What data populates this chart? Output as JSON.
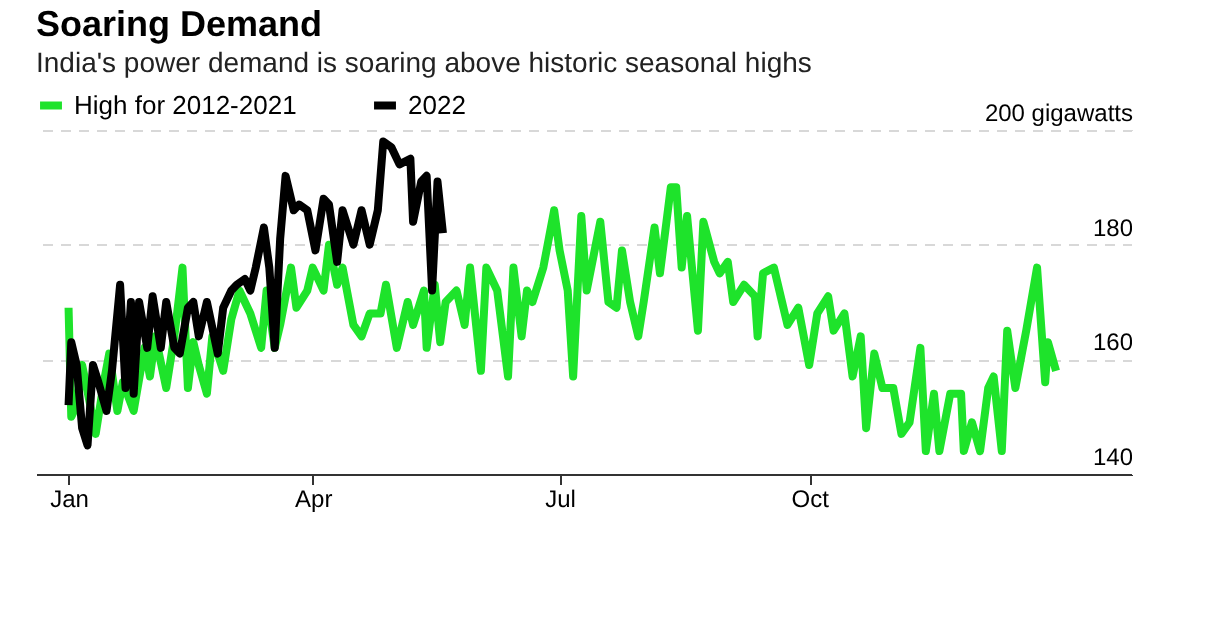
{
  "chart_data": {
    "type": "line",
    "title": "Soaring Demand",
    "subtitle": "India's power demand is soaring above historic seasonal highs",
    "xlim": [
      "2021-12-20",
      "2023-01-28"
    ],
    "xticks": [
      {
        "value": "2022-01-01",
        "label": "Jan"
      },
      {
        "value": "2022-04-01",
        "label": "Apr"
      },
      {
        "value": "2022-07-01",
        "label": "Jul"
      },
      {
        "value": "2022-10-01",
        "label": "Oct"
      }
    ],
    "ylim": [
      140,
      200
    ],
    "yticks": [
      140,
      160,
      180,
      {
        "value": 200,
        "label": "200 gigawatts"
      }
    ],
    "grid": "y",
    "legend": "top left",
    "line_style": "solid",
    "marker": "none",
    "series": [
      {
        "name": "High for 2012-2021",
        "color": "#1ee32b",
        "x": [
          "2022-01-01",
          "2022-01-02",
          "2022-01-04",
          "2022-01-06",
          "2022-01-09",
          "2022-01-11",
          "2022-01-14",
          "2022-01-16",
          "2022-01-19",
          "2022-01-21",
          "2022-01-25",
          "2022-01-29",
          "2022-01-31",
          "2022-02-02",
          "2022-02-06",
          "2022-02-09",
          "2022-02-12",
          "2022-02-14",
          "2022-02-16",
          "2022-02-18",
          "2022-02-21",
          "2022-02-23",
          "2022-02-27",
          "2022-03-02",
          "2022-03-05",
          "2022-03-09",
          "2022-03-13",
          "2022-03-15",
          "2022-03-18",
          "2022-03-20",
          "2022-03-24",
          "2022-03-26",
          "2022-03-30",
          "2022-04-01",
          "2022-04-05",
          "2022-04-07",
          "2022-04-10",
          "2022-04-12",
          "2022-04-16",
          "2022-04-19",
          "2022-04-22",
          "2022-04-26",
          "2022-04-28",
          "2022-05-02",
          "2022-05-06",
          "2022-05-08",
          "2022-05-12",
          "2022-05-13",
          "2022-05-16",
          "2022-05-18",
          "2022-05-20",
          "2022-05-24",
          "2022-05-27",
          "2022-05-29",
          "2022-06-02",
          "2022-06-04",
          "2022-06-08",
          "2022-06-12",
          "2022-06-14",
          "2022-06-17",
          "2022-06-19",
          "2022-06-21",
          "2022-06-25",
          "2022-06-29",
          "2022-07-01",
          "2022-07-04",
          "2022-07-06",
          "2022-07-09",
          "2022-07-11",
          "2022-07-16",
          "2022-07-19",
          "2022-07-22",
          "2022-07-24",
          "2022-07-27",
          "2022-07-30",
          "2022-08-01",
          "2022-08-05",
          "2022-08-07",
          "2022-08-11",
          "2022-08-13",
          "2022-08-15",
          "2022-08-17",
          "2022-08-21",
          "2022-08-23",
          "2022-08-27",
          "2022-08-29",
          "2022-09-01",
          "2022-09-03",
          "2022-09-07",
          "2022-09-11",
          "2022-09-12",
          "2022-09-14",
          "2022-09-18",
          "2022-09-21",
          "2022-09-23",
          "2022-09-27",
          "2022-10-01",
          "2022-10-04",
          "2022-10-08",
          "2022-10-10",
          "2022-10-14",
          "2022-10-17",
          "2022-10-20",
          "2022-10-22",
          "2022-10-25",
          "2022-10-28",
          "2022-11-01",
          "2022-11-04",
          "2022-11-07",
          "2022-11-11",
          "2022-11-13",
          "2022-11-16",
          "2022-11-18",
          "2022-11-22",
          "2022-11-26",
          "2022-11-27",
          "2022-11-30",
          "2022-12-03",
          "2022-12-06",
          "2022-12-08",
          "2022-12-11",
          "2022-12-13",
          "2022-12-16",
          "2022-12-20",
          "2022-12-24",
          "2022-12-27",
          "2022-12-28",
          "2022-12-31"
        ],
        "values": [
          169,
          150,
          152,
          159,
          152,
          147,
          156,
          161,
          151,
          156,
          151,
          162,
          157,
          164,
          155,
          164,
          176,
          155,
          163,
          159,
          154,
          164,
          158,
          167,
          172,
          168,
          162,
          172,
          162,
          166,
          176,
          169,
          172,
          176,
          172,
          180,
          173,
          176,
          166,
          164,
          168,
          168,
          173,
          162,
          170,
          166,
          172,
          162,
          173,
          163,
          170,
          172,
          166,
          176,
          158,
          176,
          172,
          157,
          176,
          164,
          172,
          170,
          176,
          186,
          179,
          172,
          157,
          185,
          172,
          184,
          170,
          169,
          179,
          170,
          164,
          170,
          183,
          175,
          190,
          190,
          176,
          185,
          165,
          184,
          177,
          175,
          177,
          170,
          173,
          171,
          164,
          175,
          176,
          170,
          166,
          169,
          159,
          168,
          171,
          165,
          168,
          157,
          164,
          148,
          161,
          155,
          155,
          147,
          149,
          162,
          144,
          154,
          144,
          154,
          154,
          144,
          149,
          144,
          155,
          157,
          144,
          165,
          155,
          165,
          176,
          156,
          163,
          158
        ]
      },
      {
        "name": "2022",
        "color": "#000000",
        "x": [
          "2022-01-01",
          "2022-01-02",
          "2022-01-04",
          "2022-01-06",
          "2022-01-08",
          "2022-01-10",
          "2022-01-12",
          "2022-01-15",
          "2022-01-17",
          "2022-01-20",
          "2022-01-22",
          "2022-01-24",
          "2022-01-25",
          "2022-01-27",
          "2022-01-30",
          "2022-02-01",
          "2022-02-04",
          "2022-02-06",
          "2022-02-09",
          "2022-02-11",
          "2022-02-14",
          "2022-02-16",
          "2022-02-18",
          "2022-02-21",
          "2022-02-25",
          "2022-02-27",
          "2022-03-02",
          "2022-03-04",
          "2022-03-07",
          "2022-03-09",
          "2022-03-11",
          "2022-03-14",
          "2022-03-16",
          "2022-03-18",
          "2022-03-20",
          "2022-03-22",
          "2022-03-25",
          "2022-03-27",
          "2022-03-30",
          "2022-04-02",
          "2022-04-05",
          "2022-04-07",
          "2022-04-10",
          "2022-04-12",
          "2022-04-16",
          "2022-04-19",
          "2022-04-22",
          "2022-04-25",
          "2022-04-27",
          "2022-04-30",
          "2022-05-03",
          "2022-05-07",
          "2022-05-08",
          "2022-05-11",
          "2022-05-13",
          "2022-05-15",
          "2022-05-17",
          "2022-05-19"
        ],
        "values": [
          152,
          163,
          159,
          148,
          145,
          159,
          156,
          151,
          158,
          173,
          155,
          170,
          154,
          170,
          162,
          171,
          162,
          170,
          162,
          161,
          169,
          170,
          164,
          170,
          161,
          169,
          172,
          173,
          174,
          172,
          176,
          183,
          176,
          162,
          181,
          192,
          186,
          187,
          186,
          179,
          188,
          187,
          177,
          186,
          180,
          186,
          180,
          186,
          198,
          197,
          194,
          195,
          184,
          191,
          192,
          172,
          191,
          182
        ]
      }
    ]
  }
}
